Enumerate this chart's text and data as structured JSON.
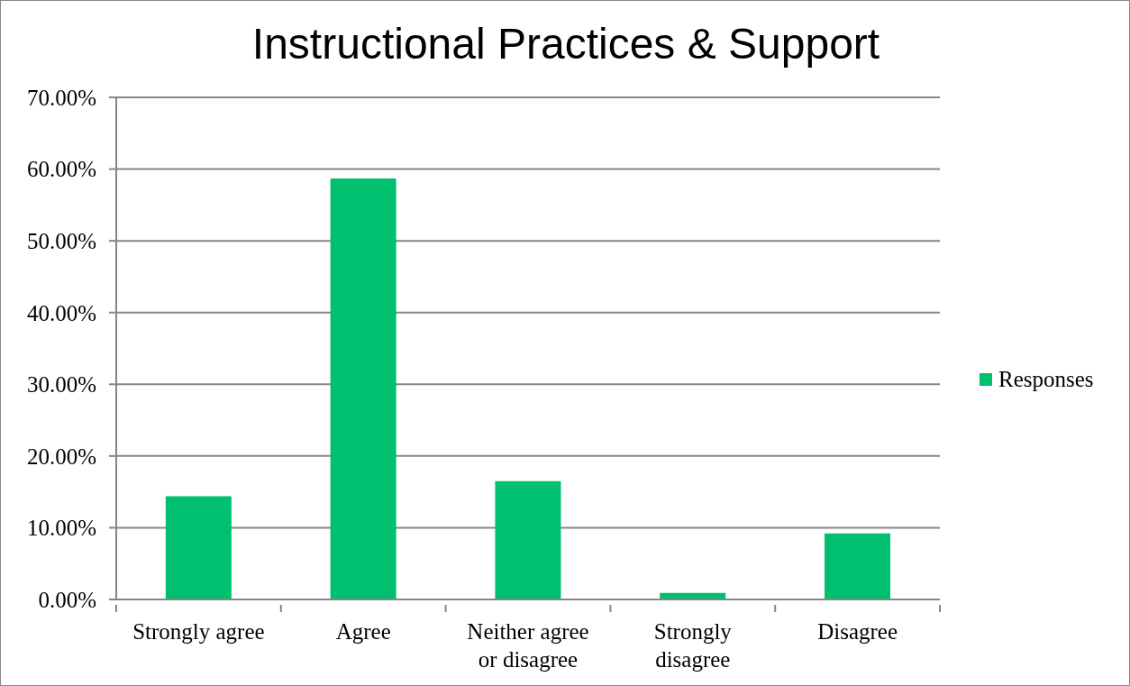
{
  "chart_data": {
    "type": "bar",
    "title": "Instructional Practices & Support",
    "categories": [
      "Strongly agree",
      "Agree",
      "Neither agree or disagree",
      "Strongly disagree",
      "Disagree"
    ],
    "series": [
      {
        "name": "Responses",
        "color": "#00bf6f",
        "values": [
          14.4,
          58.7,
          16.5,
          0.9,
          9.2
        ]
      }
    ],
    "ylim": [
      0,
      70
    ],
    "yticks": [
      {
        "value": 0,
        "label": "0.00%"
      },
      {
        "value": 10,
        "label": "10.00%"
      },
      {
        "value": 20,
        "label": "20.00%"
      },
      {
        "value": 30,
        "label": "30.00%"
      },
      {
        "value": 40,
        "label": "40.00%"
      },
      {
        "value": 50,
        "label": "50.00%"
      },
      {
        "value": 60,
        "label": "60.00%"
      },
      {
        "value": 70,
        "label": "70.00%"
      }
    ],
    "grid": "y",
    "legend": "right"
  }
}
